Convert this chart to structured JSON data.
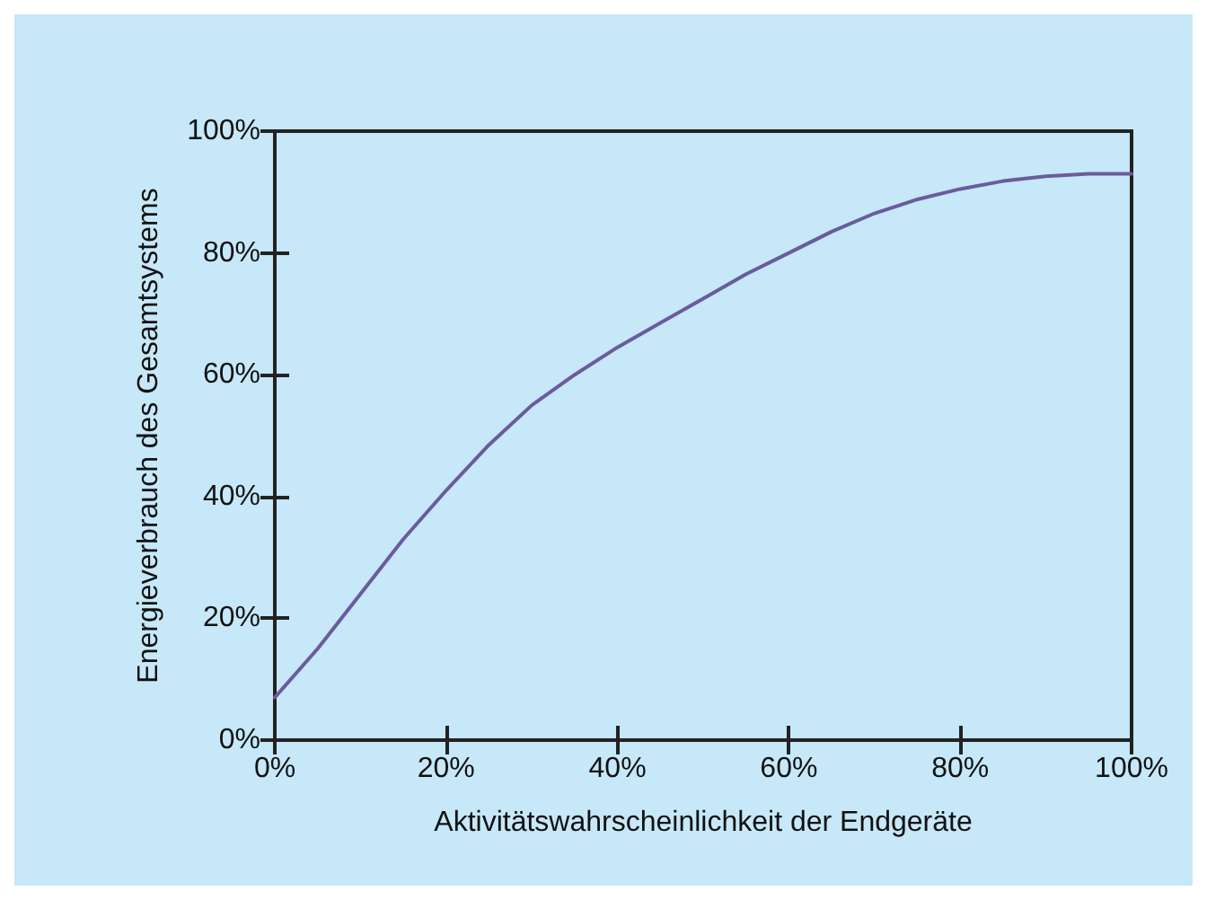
{
  "chart_data": {
    "type": "line",
    "xlabel": "Aktivitätswahrscheinlichkeit der Endgeräte",
    "ylabel": "Energieverbrauch des Gesamtsystems",
    "x": [
      0,
      5,
      10,
      15,
      20,
      25,
      30,
      35,
      40,
      45,
      50,
      55,
      60,
      65,
      70,
      75,
      80,
      85,
      90,
      95,
      100
    ],
    "series": [
      {
        "color": "#6b5b9e",
        "values": [
          7,
          15,
          24,
          33,
          41,
          48.5,
          55,
          60,
          64.5,
          68.5,
          72.5,
          76.5,
          80,
          83.5,
          86.5,
          88.8,
          90.5,
          91.8,
          92.6,
          93,
          93
        ]
      }
    ],
    "xlim": [
      0,
      100
    ],
    "ylim": [
      0,
      100
    ],
    "xticks": [
      {
        "value": 0,
        "label": "0%"
      },
      {
        "value": 20,
        "label": "20%"
      },
      {
        "value": 40,
        "label": "40%"
      },
      {
        "value": 60,
        "label": "60%"
      },
      {
        "value": 80,
        "label": "80%"
      },
      {
        "value": 100,
        "label": "100%"
      }
    ],
    "yticks": [
      {
        "value": 0,
        "label": "0%"
      },
      {
        "value": 20,
        "label": "20%"
      },
      {
        "value": 40,
        "label": "40%"
      },
      {
        "value": 60,
        "label": "60%"
      },
      {
        "value": 80,
        "label": "80%"
      },
      {
        "value": 100,
        "label": "100%"
      }
    ],
    "grid": false,
    "marker": "none",
    "line_style": "solid"
  }
}
